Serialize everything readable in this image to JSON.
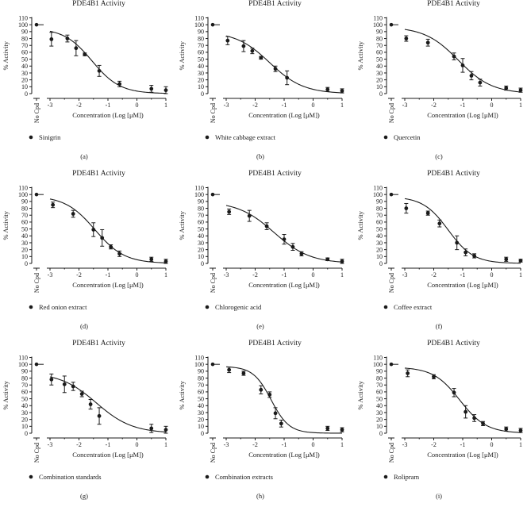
{
  "chart_data": [
    {
      "type": "scatter",
      "panel": "(a)",
      "title": "PDE4B1 Activity",
      "ylabel": "% Activity",
      "xlabel": "Concentration (Log [μM])",
      "no_cpd_label": "No Cpd",
      "legend": "Sinigrin",
      "ylim": [
        0,
        110
      ],
      "xlim": [
        -3,
        1
      ],
      "y_ticks": [
        0,
        10,
        20,
        30,
        40,
        50,
        60,
        70,
        80,
        90,
        100,
        110
      ],
      "x_ticks": [
        -3,
        -2,
        -1,
        0,
        1
      ],
      "no_cpd_value": 100,
      "points": [
        {
          "x": -2.95,
          "y": 79,
          "err": 10
        },
        {
          "x": -2.4,
          "y": 80,
          "err": 5
        },
        {
          "x": -2.1,
          "y": 66,
          "err": 11
        },
        {
          "x": -1.8,
          "y": 57,
          "err": 2
        },
        {
          "x": -1.3,
          "y": 33,
          "err": 8
        },
        {
          "x": -0.6,
          "y": 14,
          "err": 4
        },
        {
          "x": 0.5,
          "y": 7,
          "err": 5
        },
        {
          "x": 1.0,
          "y": 5,
          "err": 5
        }
      ],
      "curve": {
        "top": 95,
        "bottom": 0,
        "logIC50": -1.55,
        "hill": 0.9
      }
    },
    {
      "type": "scatter",
      "panel": "(b)",
      "title": "PDE4B1 Activity",
      "ylabel": "% Activity",
      "xlabel": "Concentration (Log [μM])",
      "no_cpd_label": "No Cpd",
      "legend": "White cabbage extract",
      "ylim": [
        0,
        110
      ],
      "xlim": [
        -3,
        1
      ],
      "y_ticks": [
        0,
        10,
        20,
        30,
        40,
        50,
        60,
        70,
        80,
        90,
        100,
        110
      ],
      "x_ticks": [
        -3,
        -2,
        -1,
        0,
        1
      ],
      "no_cpd_value": 100,
      "points": [
        {
          "x": -2.95,
          "y": 77,
          "err": 6
        },
        {
          "x": -2.4,
          "y": 69,
          "err": 8
        },
        {
          "x": -2.1,
          "y": 62,
          "err": 4
        },
        {
          "x": -1.8,
          "y": 52,
          "err": 2
        },
        {
          "x": -1.3,
          "y": 36,
          "err": 4
        },
        {
          "x": -0.9,
          "y": 23,
          "err": 10
        },
        {
          "x": 0.5,
          "y": 6,
          "err": 3
        },
        {
          "x": 1.0,
          "y": 4,
          "err": 3
        }
      ],
      "curve": {
        "top": 90,
        "bottom": 0,
        "logIC50": -1.5,
        "hill": 0.75
      }
    },
    {
      "type": "scatter",
      "panel": "(c)",
      "title": "PDE4B1 Activity",
      "ylabel": "% Activity",
      "xlabel": "Concentration (Log [μM])",
      "no_cpd_label": "No Cpd",
      "legend": "Quercetin",
      "ylim": [
        0,
        110
      ],
      "xlim": [
        -3,
        1
      ],
      "y_ticks": [
        0,
        10,
        20,
        30,
        40,
        50,
        60,
        70,
        80,
        90,
        100,
        110
      ],
      "x_ticks": [
        -3,
        -2,
        -1,
        0,
        1
      ],
      "no_cpd_value": 100,
      "points": [
        {
          "x": -2.95,
          "y": 80,
          "err": 4
        },
        {
          "x": -2.2,
          "y": 74,
          "err": 5
        },
        {
          "x": -1.3,
          "y": 54,
          "err": 5
        },
        {
          "x": -1.0,
          "y": 41,
          "err": 10
        },
        {
          "x": -0.7,
          "y": 26,
          "err": 6
        },
        {
          "x": -0.4,
          "y": 16,
          "err": 5
        },
        {
          "x": 0.5,
          "y": 8,
          "err": 3
        },
        {
          "x": 1.0,
          "y": 5,
          "err": 3
        }
      ],
      "curve": {
        "top": 97,
        "bottom": 0,
        "logIC50": -1.15,
        "hill": 0.75
      }
    },
    {
      "type": "scatter",
      "panel": "(d)",
      "title": "PDE4B1 Activity",
      "ylabel": "% Activity",
      "xlabel": "Concentration (Log [μM])",
      "no_cpd_label": "No Cpd",
      "legend": "Red onion extract",
      "ylim": [
        0,
        110
      ],
      "xlim": [
        -3,
        1
      ],
      "y_ticks": [
        0,
        10,
        20,
        30,
        40,
        50,
        60,
        70,
        80,
        90,
        100,
        110
      ],
      "x_ticks": [
        -3,
        -2,
        -1,
        0,
        1
      ],
      "no_cpd_value": 100,
      "points": [
        {
          "x": -2.9,
          "y": 85,
          "err": 4
        },
        {
          "x": -2.2,
          "y": 72,
          "err": 5
        },
        {
          "x": -1.5,
          "y": 49,
          "err": 10
        },
        {
          "x": -1.2,
          "y": 37,
          "err": 12
        },
        {
          "x": -0.9,
          "y": 24,
          "err": 3
        },
        {
          "x": -0.6,
          "y": 14,
          "err": 4
        },
        {
          "x": 0.5,
          "y": 6,
          "err": 3
        },
        {
          "x": 1.0,
          "y": 3,
          "err": 3
        }
      ],
      "curve": {
        "top": 98,
        "bottom": 0,
        "logIC50": -1.45,
        "hill": 0.85
      }
    },
    {
      "type": "scatter",
      "panel": "(e)",
      "title": "PDE4B1 Activity",
      "ylabel": "% Activity",
      "xlabel": "Concentration (Log [μM])",
      "no_cpd_label": "No Cpd",
      "legend": "Chlorogenic acid",
      "ylim": [
        0,
        110
      ],
      "xlim": [
        -3,
        1
      ],
      "y_ticks": [
        0,
        10,
        20,
        30,
        40,
        50,
        60,
        70,
        80,
        90,
        100,
        110
      ],
      "x_ticks": [
        -3,
        -2,
        -1,
        0,
        1
      ],
      "no_cpd_value": 100,
      "points": [
        {
          "x": -2.9,
          "y": 75,
          "err": 4
        },
        {
          "x": -2.2,
          "y": 69,
          "err": 8
        },
        {
          "x": -1.6,
          "y": 54,
          "err": 5
        },
        {
          "x": -1.0,
          "y": 35,
          "err": 7
        },
        {
          "x": -0.7,
          "y": 24,
          "err": 5
        },
        {
          "x": -0.4,
          "y": 14,
          "err": 3
        },
        {
          "x": 0.5,
          "y": 6,
          "err": 2
        },
        {
          "x": 1.0,
          "y": 3,
          "err": 3
        }
      ],
      "curve": {
        "top": 90,
        "bottom": 0,
        "logIC50": -1.35,
        "hill": 0.7
      }
    },
    {
      "type": "scatter",
      "panel": "(f)",
      "title": "PDE4B1 Activity",
      "ylabel": "% Activity",
      "xlabel": "Concentration (Log [μM])",
      "no_cpd_label": "No Cpd",
      "legend": "Coffee extract",
      "ylim": [
        0,
        110
      ],
      "xlim": [
        -3,
        1
      ],
      "y_ticks": [
        0,
        10,
        20,
        30,
        40,
        50,
        60,
        70,
        80,
        90,
        100,
        110
      ],
      "x_ticks": [
        -3,
        -2,
        -1,
        0,
        1
      ],
      "no_cpd_value": 100,
      "points": [
        {
          "x": -2.95,
          "y": 80,
          "err": 7
        },
        {
          "x": -2.2,
          "y": 73,
          "err": 3
        },
        {
          "x": -1.8,
          "y": 58,
          "err": 5
        },
        {
          "x": -1.2,
          "y": 30,
          "err": 10
        },
        {
          "x": -0.9,
          "y": 16,
          "err": 5
        },
        {
          "x": -0.6,
          "y": 11,
          "err": 3
        },
        {
          "x": 0.5,
          "y": 6,
          "err": 3
        },
        {
          "x": 1.0,
          "y": 4,
          "err": 2
        }
      ],
      "curve": {
        "top": 97,
        "bottom": 0,
        "logIC50": -1.5,
        "hill": 1.0
      }
    },
    {
      "type": "scatter",
      "panel": "(g)",
      "title": "PDE4B1 Activity",
      "ylabel": "% Activity",
      "xlabel": "Concentration (Log [μM])",
      "no_cpd_label": "No Cpd",
      "legend": "Combination standards",
      "ylim": [
        0,
        110
      ],
      "xlim": [
        -3,
        1
      ],
      "y_ticks": [
        0,
        10,
        20,
        30,
        40,
        50,
        60,
        70,
        80,
        90,
        100,
        110
      ],
      "x_ticks": [
        -3,
        -2,
        -1,
        0,
        1
      ],
      "no_cpd_value": 100,
      "points": [
        {
          "x": -2.95,
          "y": 78,
          "err": 8
        },
        {
          "x": -2.5,
          "y": 71,
          "err": 12
        },
        {
          "x": -2.2,
          "y": 68,
          "err": 6
        },
        {
          "x": -1.9,
          "y": 57,
          "err": 4
        },
        {
          "x": -1.6,
          "y": 42,
          "err": 7
        },
        {
          "x": -1.3,
          "y": 25,
          "err": 12
        },
        {
          "x": 0.5,
          "y": 7,
          "err": 6
        },
        {
          "x": 1.0,
          "y": 5,
          "err": 5
        }
      ],
      "curve": {
        "top": 88,
        "bottom": 0,
        "logIC50": -1.4,
        "hill": 0.7
      }
    },
    {
      "type": "scatter",
      "panel": "(h)",
      "title": "PDE4B1 Activity",
      "ylabel": "% Activity",
      "xlabel": "Concentration (Log [μM])",
      "no_cpd_label": "No Cpd",
      "legend": "Combination extracts",
      "ylim": [
        0,
        110
      ],
      "xlim": [
        -3,
        1
      ],
      "y_ticks": [
        0,
        10,
        20,
        30,
        40,
        50,
        60,
        70,
        80,
        90,
        100,
        110
      ],
      "x_ticks": [
        -3,
        -2,
        -1,
        0,
        1
      ],
      "no_cpd_value": 100,
      "points": [
        {
          "x": -2.9,
          "y": 92,
          "err": 4
        },
        {
          "x": -2.4,
          "y": 87,
          "err": 3
        },
        {
          "x": -1.8,
          "y": 63,
          "err": 6
        },
        {
          "x": -1.5,
          "y": 56,
          "err": 4
        },
        {
          "x": -1.3,
          "y": 29,
          "err": 8
        },
        {
          "x": -1.1,
          "y": 14,
          "err": 5
        },
        {
          "x": 0.5,
          "y": 7,
          "err": 3
        },
        {
          "x": 1.0,
          "y": 5,
          "err": 3
        }
      ],
      "curve": {
        "top": 97,
        "bottom": 0,
        "logIC50": -1.45,
        "hill": 1.4
      }
    },
    {
      "type": "scatter",
      "panel": "(i)",
      "title": "PDE4B1 Activity",
      "ylabel": "% Activity",
      "xlabel": "Concentration (Log [μM])",
      "no_cpd_label": "No Cpd",
      "legend": "Rolipram",
      "ylim": [
        0,
        110
      ],
      "xlim": [
        -3,
        1
      ],
      "y_ticks": [
        0,
        10,
        20,
        30,
        40,
        50,
        60,
        70,
        80,
        90,
        100,
        110
      ],
      "x_ticks": [
        -3,
        -2,
        -1,
        0,
        1
      ],
      "no_cpd_value": 100,
      "points": [
        {
          "x": -2.9,
          "y": 87,
          "err": 5
        },
        {
          "x": -2.0,
          "y": 82,
          "err": 3
        },
        {
          "x": -1.3,
          "y": 59,
          "err": 6
        },
        {
          "x": -0.9,
          "y": 31,
          "err": 9
        },
        {
          "x": -0.6,
          "y": 22,
          "err": 5
        },
        {
          "x": -0.3,
          "y": 14,
          "err": 3
        },
        {
          "x": 0.5,
          "y": 6,
          "err": 3
        },
        {
          "x": 1.0,
          "y": 4,
          "err": 3
        }
      ],
      "curve": {
        "top": 96,
        "bottom": 0,
        "logIC50": -1.1,
        "hill": 0.95
      }
    }
  ]
}
